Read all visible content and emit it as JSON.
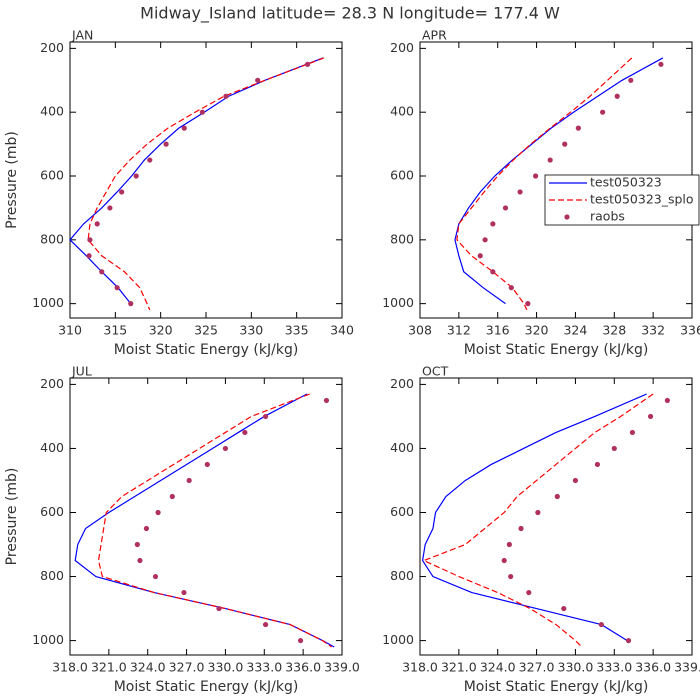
{
  "title": "Midway_Island  latitude= 28.3 N longitude= 177.4 W",
  "chart_data": [
    {
      "type": "line",
      "title": "JAN",
      "xlabel": "Moist Static Energy (kJ/kg)",
      "ylabel": "Pressure (mb)",
      "xlim": [
        310,
        340
      ],
      "xticks": [
        310,
        315,
        320,
        325,
        330,
        335,
        340
      ],
      "ylim": [
        180,
        1045
      ],
      "y_reversed": true,
      "yticks": [
        200,
        400,
        600,
        800,
        1000
      ],
      "series": [
        {
          "color": "#0000ff",
          "style": "solid",
          "y": [
            230,
            300,
            350,
            400,
            450,
            500,
            550,
            600,
            650,
            700,
            750,
            800,
            850,
            900,
            950,
            1000
          ],
          "values": [
            337.9,
            331.5,
            327.5,
            324.8,
            322.0,
            320.0,
            318.2,
            316.8,
            315.2,
            313.5,
            311.5,
            310.0,
            311.8,
            313.5,
            315.3,
            316.7
          ]
        },
        {
          "color": "#ff0000",
          "style": "dashed",
          "y": [
            230,
            300,
            350,
            400,
            450,
            500,
            550,
            600,
            650,
            700,
            750,
            800,
            850,
            900,
            950,
            1000,
            1020
          ],
          "values": [
            338.0,
            331.5,
            327.0,
            323.8,
            320.8,
            318.5,
            316.6,
            315.0,
            314.0,
            313.0,
            312.2,
            312.0,
            313.5,
            316.0,
            317.7,
            318.5,
            318.8
          ]
        },
        {
          "color": "#b03060",
          "style": "markers",
          "y": [
            250,
            300,
            350,
            400,
            450,
            500,
            550,
            600,
            650,
            700,
            750,
            800,
            850,
            900,
            950,
            1000
          ],
          "values": [
            336.2,
            330.7,
            327.2,
            324.6,
            322.6,
            320.6,
            318.8,
            317.3,
            315.7,
            314.4,
            313.0,
            312.2,
            312.1,
            313.5,
            315.2,
            316.7
          ]
        }
      ]
    },
    {
      "type": "line",
      "title": "APR",
      "xlabel": "Moist Static Energy (kJ/kg)",
      "xlim": [
        308,
        336
      ],
      "xticks": [
        308,
        312,
        316,
        320,
        324,
        328,
        332,
        336
      ],
      "ylim": [
        180,
        1045
      ],
      "y_reversed": true,
      "yticks": [
        200,
        400,
        600,
        800,
        1000
      ],
      "legend": "center-right",
      "series": [
        {
          "name": "test050323",
          "color": "#0000ff",
          "style": "solid",
          "y": [
            230,
            300,
            350,
            400,
            450,
            500,
            550,
            600,
            650,
            700,
            750,
            800,
            850,
            900,
            950,
            1000
          ],
          "values": [
            333.0,
            328.8,
            326.3,
            323.8,
            321.5,
            319.5,
            317.5,
            315.7,
            314.2,
            313.0,
            312.0,
            311.6,
            312.0,
            312.5,
            314.5,
            316.8
          ]
        },
        {
          "name": "test050323_splo",
          "color": "#ff0000",
          "style": "dashed",
          "y": [
            230,
            300,
            350,
            400,
            450,
            500,
            550,
            600,
            650,
            700,
            750,
            800,
            850,
            900,
            950,
            1000,
            1020
          ],
          "values": [
            329.8,
            327.3,
            325.5,
            323.5,
            321.4,
            319.4,
            317.6,
            316.0,
            314.6,
            313.3,
            312.0,
            311.8,
            313.3,
            315.5,
            317.5,
            318.7,
            319.0
          ]
        },
        {
          "name": "raobs",
          "color": "#b03060",
          "style": "markers",
          "y": [
            250,
            300,
            350,
            400,
            450,
            500,
            550,
            600,
            650,
            700,
            750,
            800,
            850,
            900,
            950,
            1000
          ],
          "values": [
            332.8,
            329.7,
            328.3,
            326.8,
            324.3,
            322.9,
            321.4,
            319.9,
            318.3,
            316.8,
            315.5,
            314.7,
            314.2,
            315.5,
            317.4,
            319.1
          ]
        }
      ]
    },
    {
      "type": "line",
      "title": "JUL",
      "xlabel": "Moist Static Energy (kJ/kg)",
      "ylabel": "Pressure (mb)",
      "xlim": [
        318,
        339
      ],
      "xticks": [
        {
          "value": 318,
          "label": "318.0"
        },
        {
          "value": 321,
          "label": "321.0"
        },
        {
          "value": 324,
          "label": "324.0"
        },
        {
          "value": 327,
          "label": "327.0"
        },
        {
          "value": 330,
          "label": "330.0"
        },
        {
          "value": 333,
          "label": "333.0"
        },
        {
          "value": 336,
          "label": "336.0"
        },
        {
          "value": 339,
          "label": "339.0"
        }
      ],
      "ylim": [
        180,
        1045
      ],
      "y_reversed": true,
      "yticks": [
        200,
        400,
        600,
        800,
        1000
      ],
      "series": [
        {
          "color": "#0000ff",
          "style": "solid",
          "y": [
            230,
            300,
            350,
            400,
            450,
            500,
            550,
            600,
            650,
            700,
            750,
            800,
            850,
            900,
            950,
            1000,
            1020
          ],
          "values": [
            336.3,
            333.0,
            331.0,
            329.0,
            327.0,
            325.0,
            323.0,
            321.0,
            319.2,
            318.6,
            318.4,
            320.0,
            324.5,
            330.0,
            335.0,
            337.5,
            338.4
          ]
        },
        {
          "color": "#ff0000",
          "style": "dashed",
          "y": [
            230,
            300,
            350,
            400,
            450,
            500,
            550,
            600,
            650,
            700,
            750,
            800,
            850,
            900,
            950,
            1000,
            1020
          ],
          "values": [
            336.5,
            332.0,
            330.0,
            328.0,
            326.0,
            324.0,
            322.0,
            320.8,
            320.6,
            320.4,
            320.2,
            320.5,
            324.5,
            330.0,
            335.0,
            337.5,
            338.2
          ]
        },
        {
          "color": "#b03060",
          "style": "markers",
          "y": [
            250,
            300,
            350,
            400,
            450,
            500,
            550,
            600,
            650,
            700,
            750,
            800,
            850,
            900,
            950,
            1000
          ],
          "values": [
            337.8,
            333.1,
            331.5,
            330.0,
            328.6,
            327.2,
            325.9,
            324.8,
            323.9,
            323.2,
            323.4,
            324.6,
            326.8,
            329.5,
            333.1,
            335.8
          ]
        }
      ]
    },
    {
      "type": "line",
      "title": "OCT",
      "xlabel": "Moist Static Energy (kJ/kg)",
      "xlim": [
        318,
        339
      ],
      "xticks": [
        {
          "value": 318,
          "label": "318.0"
        },
        {
          "value": 321,
          "label": "321.0"
        },
        {
          "value": 324,
          "label": "324.0"
        },
        {
          "value": 327,
          "label": "327.0"
        },
        {
          "value": 330,
          "label": "330.0"
        },
        {
          "value": 333,
          "label": "333.0"
        },
        {
          "value": 336,
          "label": "336.0"
        },
        {
          "value": 339,
          "label": "339.0"
        }
      ],
      "ylim": [
        180,
        1045
      ],
      "y_reversed": true,
      "yticks": [
        200,
        400,
        600,
        800,
        1000
      ],
      "series": [
        {
          "color": "#0000ff",
          "style": "solid",
          "y": [
            230,
            300,
            350,
            400,
            450,
            500,
            550,
            600,
            650,
            700,
            750,
            800,
            850,
            900,
            950,
            1000
          ],
          "values": [
            335.5,
            331.5,
            328.5,
            326.0,
            323.5,
            321.5,
            320.0,
            319.2,
            319.0,
            318.4,
            318.2,
            319.0,
            322.0,
            327.0,
            332.0,
            334.0
          ]
        },
        {
          "color": "#ff0000",
          "style": "dashed",
          "y": [
            230,
            300,
            350,
            400,
            450,
            500,
            550,
            600,
            650,
            700,
            750,
            800,
            850,
            900,
            950,
            1000,
            1020
          ],
          "values": [
            336.0,
            333.5,
            331.5,
            330.0,
            328.5,
            327.0,
            325.5,
            324.5,
            323.0,
            321.5,
            318.3,
            321.0,
            324.0,
            326.5,
            328.5,
            330.0,
            330.5
          ]
        },
        {
          "color": "#b03060",
          "style": "markers",
          "y": [
            250,
            300,
            350,
            400,
            450,
            500,
            550,
            600,
            650,
            700,
            750,
            800,
            850,
            900,
            950,
            1000
          ],
          "values": [
            337.1,
            335.8,
            334.4,
            333.0,
            331.7,
            330.0,
            328.6,
            327.1,
            325.8,
            324.9,
            324.5,
            325.0,
            326.4,
            329.1,
            332.0,
            334.1
          ]
        }
      ]
    }
  ]
}
